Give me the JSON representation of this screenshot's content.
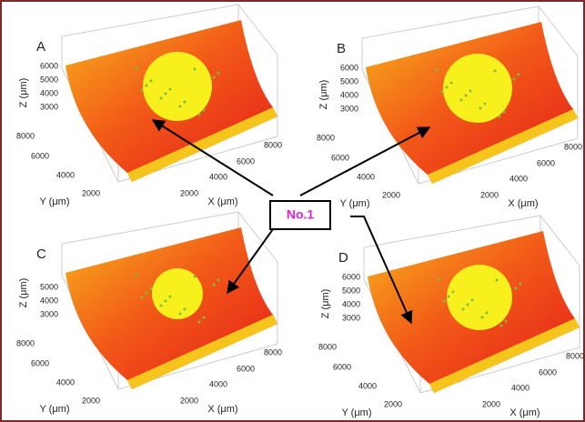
{
  "panels": [
    {
      "label": "A",
      "z_label": "Z (μm)",
      "y_label": "Y (μm)",
      "x_label": "X (μm)",
      "z_ticks": [
        "6000",
        "5000",
        "4000",
        "3000"
      ],
      "y_ticks": [
        "8000",
        "6000",
        "4000",
        "2000"
      ],
      "x_ticks": [
        "2000",
        "4000",
        "6000",
        "8000"
      ]
    },
    {
      "label": "B",
      "z_label": "Z (μm)",
      "y_label": "Y (μm)",
      "x_label": "X (μm)",
      "z_ticks": [
        "6000",
        "5000",
        "4000",
        "3000"
      ],
      "y_ticks": [
        "8000",
        "6000",
        "4000",
        "2000"
      ],
      "x_ticks": [
        "2000",
        "4000",
        "6000",
        "8000"
      ]
    },
    {
      "label": "C",
      "z_label": "Z (μm)",
      "y_label": "Y (μm)",
      "x_label": "X (μm)",
      "z_ticks": [
        "5000",
        "4000",
        "3000"
      ],
      "y_ticks": [
        "8000",
        "6000",
        "4000",
        "2000"
      ],
      "x_ticks": [
        "2000",
        "4000",
        "6000",
        "8000"
      ]
    },
    {
      "label": "D",
      "z_label": "Z (μm)",
      "y_label": "Y (μm)",
      "x_label": "X (μm)",
      "z_ticks": [
        "6000",
        "5000",
        "4000",
        "3000"
      ],
      "y_ticks": [
        "8000",
        "6000",
        "4000",
        "2000"
      ],
      "x_ticks": [
        "2000",
        "4000",
        "6000",
        "8000"
      ]
    }
  ],
  "center_label": "No.1"
}
